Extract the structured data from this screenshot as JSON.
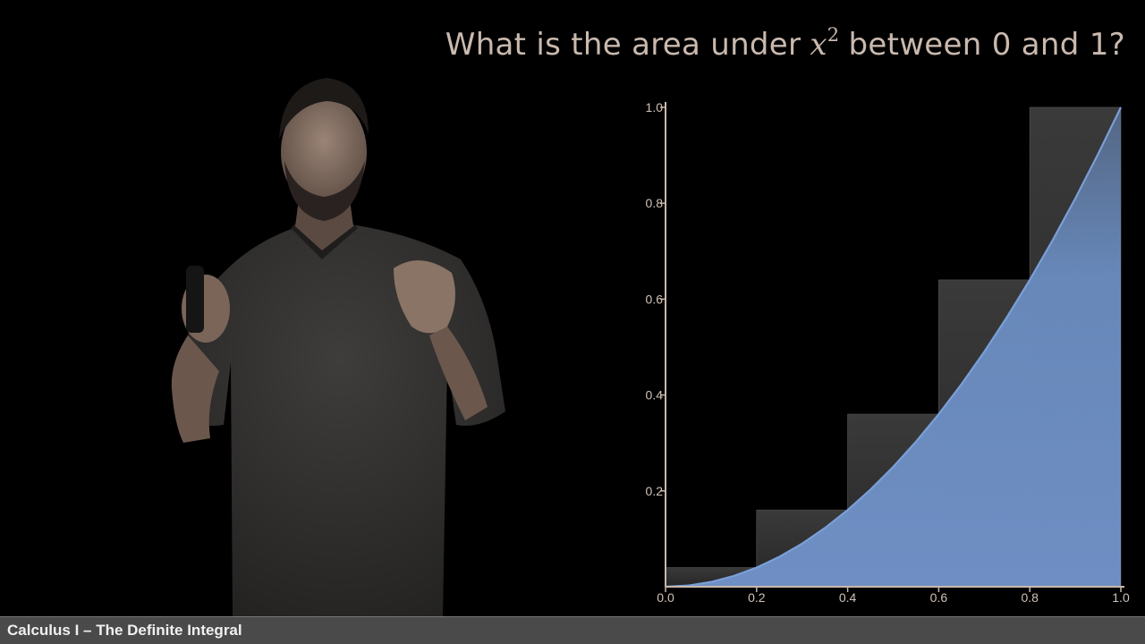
{
  "title": {
    "text_before": "What is the area under",
    "variable": "x",
    "exponent": "2",
    "text_after": "between 0 and 1?"
  },
  "footer": {
    "text": "Calculus I – The Definite Integral"
  },
  "colors": {
    "curve": "#7a9fd8",
    "fill_under": "#6a8cc0",
    "rect_top": "#3a3a3a",
    "axis": "#c8b8ab",
    "tick_text": "#d0c2b8",
    "footer_bg": "#4a4a4a"
  },
  "chart_data": {
    "type": "bar",
    "function": "x^2",
    "x": [
      0.0,
      0.2,
      0.4,
      0.6,
      0.8
    ],
    "bar_width": 0.2,
    "rect_heights": [
      0.04,
      0.16,
      0.36,
      0.64,
      1.0
    ],
    "curve_x": [
      0,
      0.05,
      0.1,
      0.15,
      0.2,
      0.25,
      0.3,
      0.35,
      0.4,
      0.45,
      0.5,
      0.55,
      0.6,
      0.65,
      0.7,
      0.75,
      0.8,
      0.85,
      0.9,
      0.95,
      1.0
    ],
    "curve_y": [
      0,
      0.0025,
      0.01,
      0.0225,
      0.04,
      0.0625,
      0.09,
      0.1225,
      0.16,
      0.2025,
      0.25,
      0.3025,
      0.36,
      0.4225,
      0.49,
      0.5625,
      0.64,
      0.7225,
      0.81,
      0.9025,
      1.0
    ],
    "xlim": [
      0,
      1
    ],
    "ylim": [
      0,
      1
    ],
    "xticks": [
      "0.0",
      "0.2",
      "0.4",
      "0.6",
      "0.8",
      "1.0"
    ],
    "xtick_values": [
      0,
      0.2,
      0.4,
      0.6,
      0.8,
      1.0
    ],
    "yticks": [
      "0.2",
      "0.4",
      "0.6",
      "0.8",
      "1.0"
    ],
    "ytick_values": [
      0.2,
      0.4,
      0.6,
      0.8,
      1.0
    ],
    "grid": false
  }
}
